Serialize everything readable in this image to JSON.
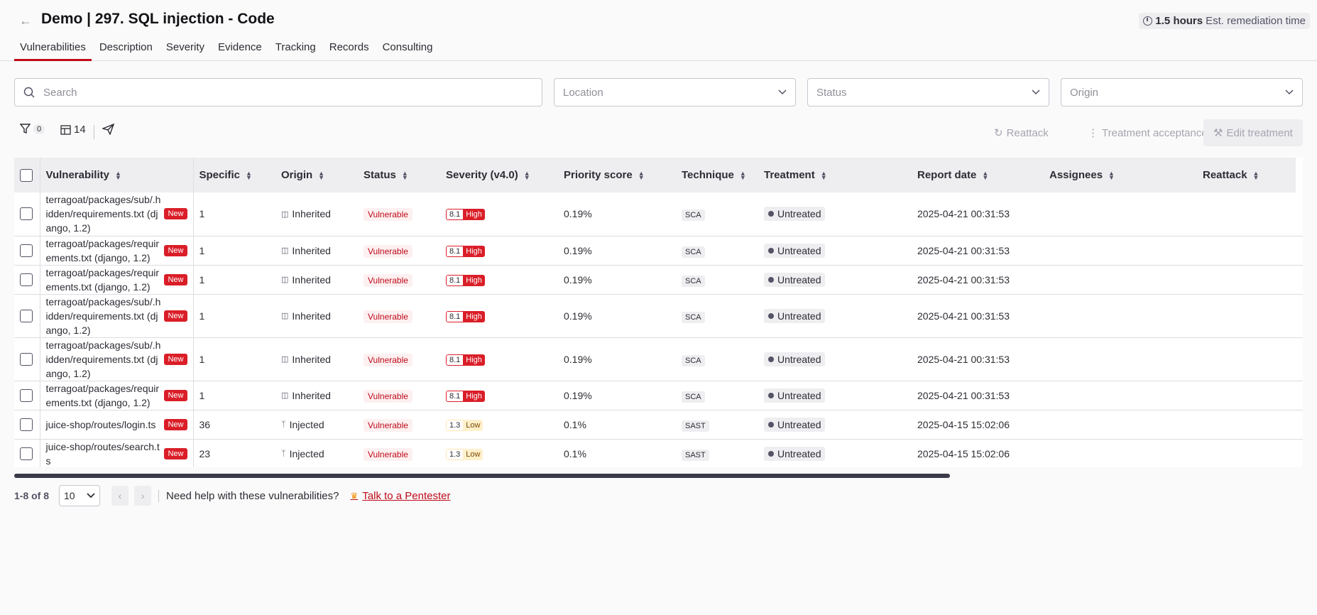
{
  "header": {
    "title": "Demo | 297. SQL injection - Code",
    "remediation_value": "1.5 hours",
    "remediation_label": "Est. remediation time"
  },
  "tabs": [
    "Vulnerabilities",
    "Description",
    "Severity",
    "Evidence",
    "Tracking",
    "Records",
    "Consulting"
  ],
  "filters": {
    "search_placeholder": "Search",
    "location_placeholder": "Location",
    "status_placeholder": "Status",
    "origin_placeholder": "Origin"
  },
  "toolbar": {
    "filter_count": "0",
    "columns_count": "14",
    "reattack_label": "Reattack",
    "treatment_acceptance_label": "Treatment acceptance",
    "edit_treatment_label": "Edit treatment"
  },
  "columns": [
    "Vulnerability",
    "Specific",
    "Origin",
    "Status",
    "Severity (v4.0)",
    "Priority score",
    "Technique",
    "Treatment",
    "Report date",
    "Assignees",
    "Reattack"
  ],
  "rows": [
    {
      "vulnerability": "terragoat/packages/sub/.hidden/requirements.txt (django, 1.2)",
      "tag": "New",
      "specific": "1",
      "origin": "Inherited",
      "status": "Vulnerable",
      "score": "8.1",
      "level": "High",
      "priority": "0.19%",
      "technique": "SCA",
      "treatment": "Untreated",
      "report_date": "2025-04-21 00:31:53"
    },
    {
      "vulnerability": "terragoat/packages/requirements.txt (django, 1.2)",
      "tag": "New",
      "specific": "1",
      "origin": "Inherited",
      "status": "Vulnerable",
      "score": "8.1",
      "level": "High",
      "priority": "0.19%",
      "technique": "SCA",
      "treatment": "Untreated",
      "report_date": "2025-04-21 00:31:53"
    },
    {
      "vulnerability": "terragoat/packages/requirements.txt (django, 1.2)",
      "tag": "New",
      "specific": "1",
      "origin": "Inherited",
      "status": "Vulnerable",
      "score": "8.1",
      "level": "High",
      "priority": "0.19%",
      "technique": "SCA",
      "treatment": "Untreated",
      "report_date": "2025-04-21 00:31:53"
    },
    {
      "vulnerability": "terragoat/packages/sub/.hidden/requirements.txt (django, 1.2)",
      "tag": "New",
      "specific": "1",
      "origin": "Inherited",
      "status": "Vulnerable",
      "score": "8.1",
      "level": "High",
      "priority": "0.19%",
      "technique": "SCA",
      "treatment": "Untreated",
      "report_date": "2025-04-21 00:31:53"
    },
    {
      "vulnerability": "terragoat/packages/sub/.hidden/requirements.txt (django, 1.2)",
      "tag": "New",
      "specific": "1",
      "origin": "Inherited",
      "status": "Vulnerable",
      "score": "8.1",
      "level": "High",
      "priority": "0.19%",
      "technique": "SCA",
      "treatment": "Untreated",
      "report_date": "2025-04-21 00:31:53"
    },
    {
      "vulnerability": "terragoat/packages/requirements.txt (django, 1.2)",
      "tag": "New",
      "specific": "1",
      "origin": "Inherited",
      "status": "Vulnerable",
      "score": "8.1",
      "level": "High",
      "priority": "0.19%",
      "technique": "SCA",
      "treatment": "Untreated",
      "report_date": "2025-04-21 00:31:53"
    },
    {
      "vulnerability": "juice-shop/routes/login.ts",
      "tag": "New",
      "specific": "36",
      "origin": "Injected",
      "status": "Vulnerable",
      "score": "1.3",
      "level": "Low",
      "priority": "0.1%",
      "technique": "SAST",
      "treatment": "Untreated",
      "report_date": "2025-04-15 15:02:06"
    },
    {
      "vulnerability": "juice-shop/routes/search.ts",
      "tag": "New",
      "specific": "23",
      "origin": "Injected",
      "status": "Vulnerable",
      "score": "1.3",
      "level": "Low",
      "priority": "0.1%",
      "technique": "SAST",
      "treatment": "Untreated",
      "report_date": "2025-04-15 15:02:06"
    }
  ],
  "pagination": {
    "range": "1-8 of 8",
    "per_page": "10",
    "help_text": "Need help with these vulnerabilities?",
    "pentester_link": "Talk to a Pentester"
  }
}
